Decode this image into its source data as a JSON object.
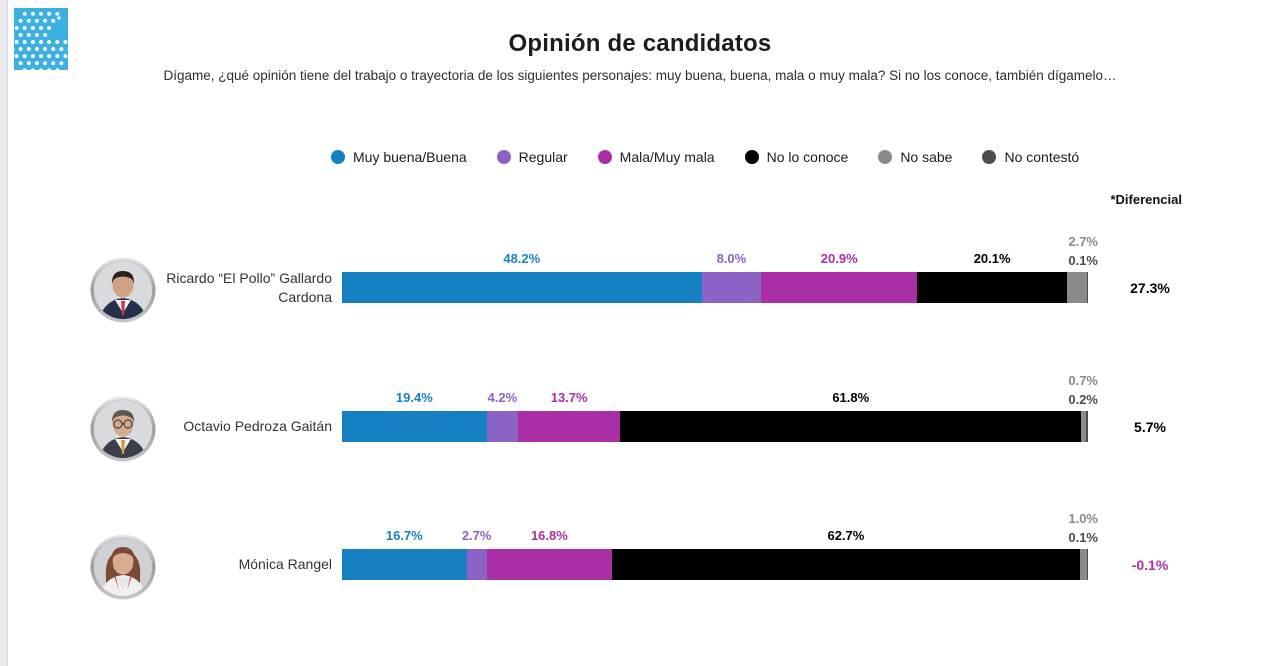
{
  "page": {
    "title": "Opinión de candidatos",
    "subtitle": "Dígame, ¿qué opinión tiene del trabajo o trayectoria de los siguientes personajes: muy buena, buena, mala o muy mala? Si no los conoce, también dígamelo…",
    "differential_header": "*Diferencial",
    "logo_color": "#3cb0e0"
  },
  "legend": [
    {
      "label": "Muy buena/Buena",
      "color": "#1681c2"
    },
    {
      "label": "Regular",
      "color": "#8a63c4"
    },
    {
      "label": "Mala/Muy mala",
      "color": "#aa2fa4"
    },
    {
      "label": "No lo conoce",
      "color": "#000000"
    },
    {
      "label": "No sabe",
      "color": "#8a8a8a"
    },
    {
      "label": "No contestó",
      "color": "#4d4d4d"
    }
  ],
  "chart_data": {
    "type": "bar",
    "orientation": "horizontal-stacked",
    "title": "Opinión de candidatos",
    "xlabel": "",
    "ylabel": "",
    "xlim": [
      0,
      100
    ],
    "grid": false,
    "legend_position": "top",
    "categories": [
      "Ricardo “El Pollo” Gallardo Cardona",
      "Octavio Pedroza Gaitán",
      "Mónica Rangel"
    ],
    "series": [
      {
        "name": "Muy buena/Buena",
        "color": "#1681c2",
        "values": [
          48.2,
          19.4,
          16.7
        ]
      },
      {
        "name": "Regular",
        "color": "#8a63c4",
        "values": [
          8.0,
          4.2,
          2.7
        ]
      },
      {
        "name": "Mala/Muy mala",
        "color": "#aa2fa4",
        "values": [
          20.9,
          13.7,
          16.8
        ]
      },
      {
        "name": "No lo conoce",
        "color": "#000000",
        "values": [
          20.1,
          61.8,
          62.7
        ]
      },
      {
        "name": "No sabe",
        "color": "#8a8a8a",
        "values": [
          2.7,
          0.7,
          1.0
        ]
      },
      {
        "name": "No contestó",
        "color": "#4d4d4d",
        "values": [
          0.1,
          0.2,
          0.1
        ]
      }
    ],
    "differential_label": "*Diferencial",
    "differential": [
      27.3,
      5.7,
      -0.1
    ]
  },
  "rows": [
    {
      "name_lines": [
        "Ricardo “El Pollo” Gallardo",
        "Cardona"
      ],
      "segments": [
        48.2,
        8.0,
        20.9,
        20.1,
        2.7,
        0.1
      ],
      "labels": [
        "48.2%",
        "8.0%",
        "20.9%",
        "20.1%",
        "2.7%",
        "0.1%"
      ],
      "differential": "27.3%",
      "differential_color": "#000000",
      "avatar": {
        "type": "man",
        "desc": "man-dark-hair-navy-suit-red-tie",
        "hair": "#272120",
        "suit": "#25304a",
        "shirt": "#f4f4f4",
        "tie": "#c23a4a",
        "skin": "#d0a184",
        "bg": "#d9dadd"
      }
    },
    {
      "name_lines": [
        "Octavio Pedroza Gaitán"
      ],
      "segments": [
        19.4,
        4.2,
        13.7,
        61.8,
        0.7,
        0.2
      ],
      "labels": [
        "19.4%",
        "4.2%",
        "13.7%",
        "61.8%",
        "0.7%",
        "0.2%"
      ],
      "differential": "5.7%",
      "differential_color": "#000000",
      "avatar": {
        "type": "man-glasses",
        "desc": "man-glasses-dark-suit-gold-tie",
        "hair": "#5c5650",
        "suit": "#3a3f49",
        "shirt": "#f4f4f4",
        "tie": "#c9a23a",
        "skin": "#d6ab8c",
        "bg": "#d9dadd"
      }
    },
    {
      "name_lines": [
        "Mónica Rangel"
      ],
      "segments": [
        16.7,
        2.7,
        16.8,
        62.7,
        1.0,
        0.1
      ],
      "labels": [
        "16.7%",
        "2.7%",
        "16.8%",
        "62.7%",
        "1.0%",
        "0.1%"
      ],
      "differential": "-0.1%",
      "differential_color": "#aa2fa4",
      "avatar": {
        "type": "woman",
        "desc": "woman-auburn-hair-white-jacket-red-trim",
        "hair": "#7a4a35",
        "suit": "#f2f0ee",
        "shirt": "#e8e6e4",
        "tie": "#c23a4a",
        "skin": "#d8ac8e",
        "bg": "#cfd1d4"
      }
    }
  ],
  "label_colors": [
    "#1681c2",
    "#8a63c4",
    "#aa2fa4",
    "#000000",
    "#8a8a8a",
    "#4d4d4d"
  ]
}
